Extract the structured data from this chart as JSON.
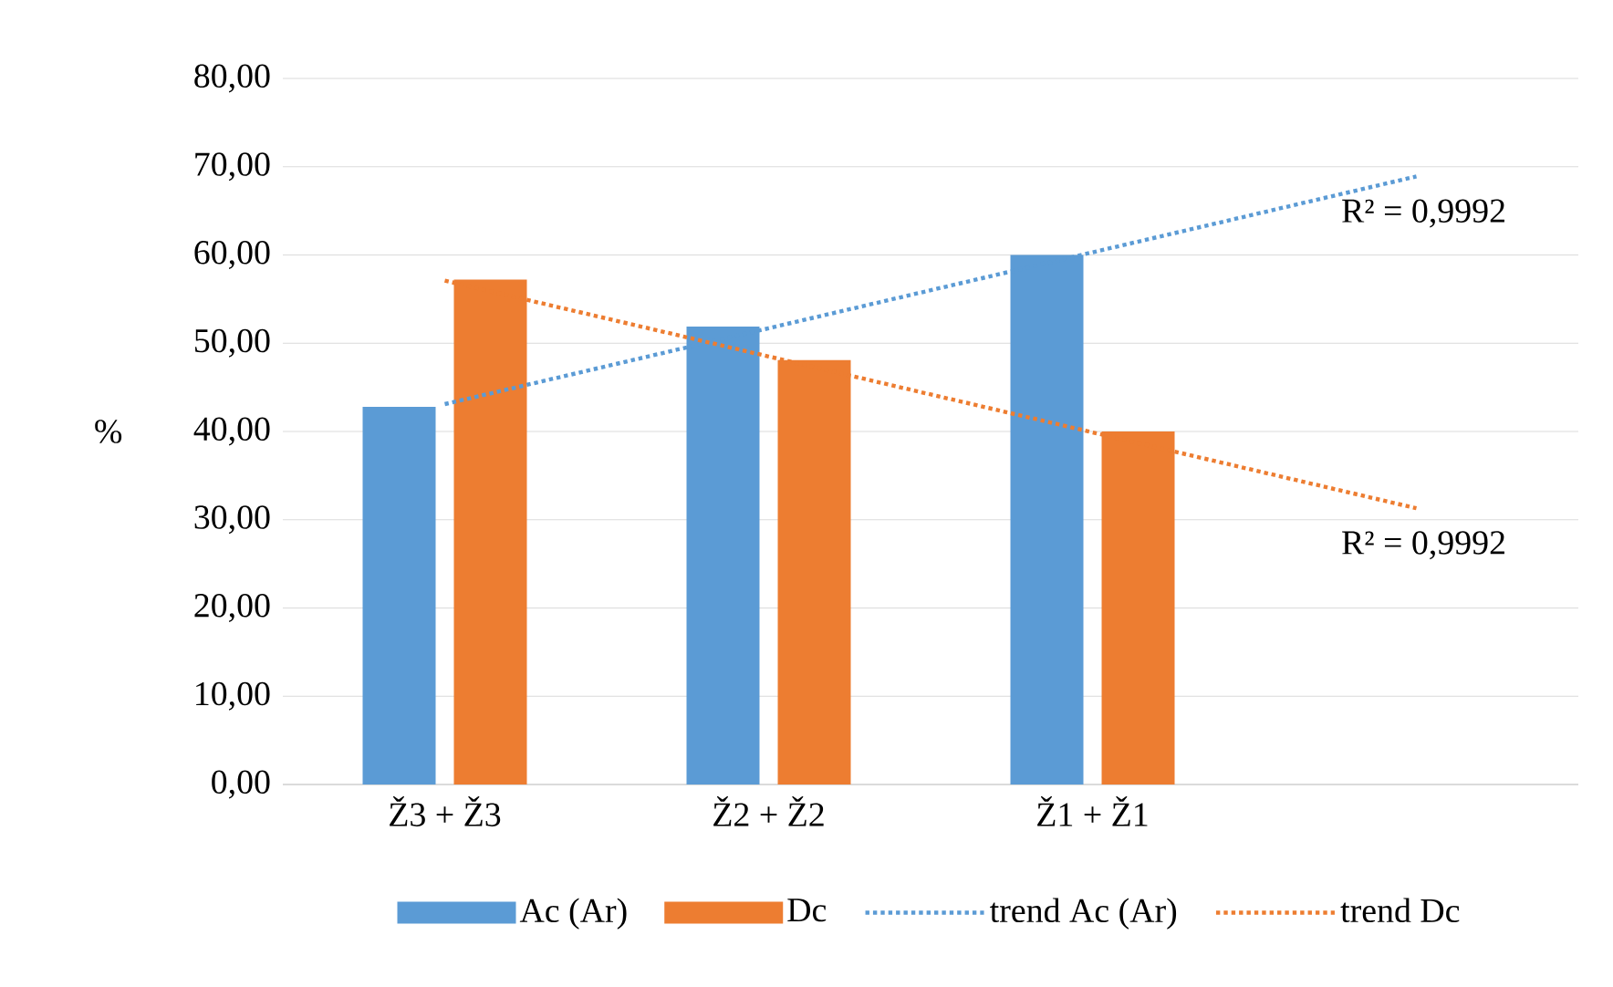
{
  "chart_data": {
    "type": "bar",
    "ylabel": "%",
    "categories": [
      "Ž3 + Ž3",
      "Ž2 + Ž2",
      "Ž1 + Ž1",
      null
    ],
    "series": [
      {
        "name": "Ac (Ar)",
        "color": "#5b9bd5",
        "values": [
          42.8,
          51.9,
          60.0,
          null
        ]
      },
      {
        "name": "Dc",
        "color": "#ed7d31",
        "values": [
          57.2,
          48.1,
          40.0,
          null
        ]
      },
      {
        "name": "trend Ac (Ar)",
        "type": "line",
        "line_style": "dotted",
        "color": "#5b9bd5",
        "values": [
          43.1,
          51.7,
          60.3,
          68.9
        ]
      },
      {
        "name": "trend Dc",
        "type": "line",
        "line_style": "dotted",
        "color": "#ed7d31",
        "values": [
          57.1,
          48.5,
          39.9,
          31.3
        ]
      }
    ],
    "annotations": [
      "R² = 0,9992",
      "R² = 0,9992"
    ],
    "ylim": [
      0,
      80
    ],
    "yticks": [
      {
        "value": 0,
        "label": "0,00"
      },
      {
        "value": 10,
        "label": "10,00"
      },
      {
        "value": 20,
        "label": "20,00"
      },
      {
        "value": 30,
        "label": "30,00"
      },
      {
        "value": 40,
        "label": "40,00"
      },
      {
        "value": 50,
        "label": "50,00"
      },
      {
        "value": 60,
        "label": "60,00"
      },
      {
        "value": 70,
        "label": "70,00"
      },
      {
        "value": 80,
        "label": "80,00"
      }
    ],
    "grid": "y",
    "legend": "bottom"
  }
}
